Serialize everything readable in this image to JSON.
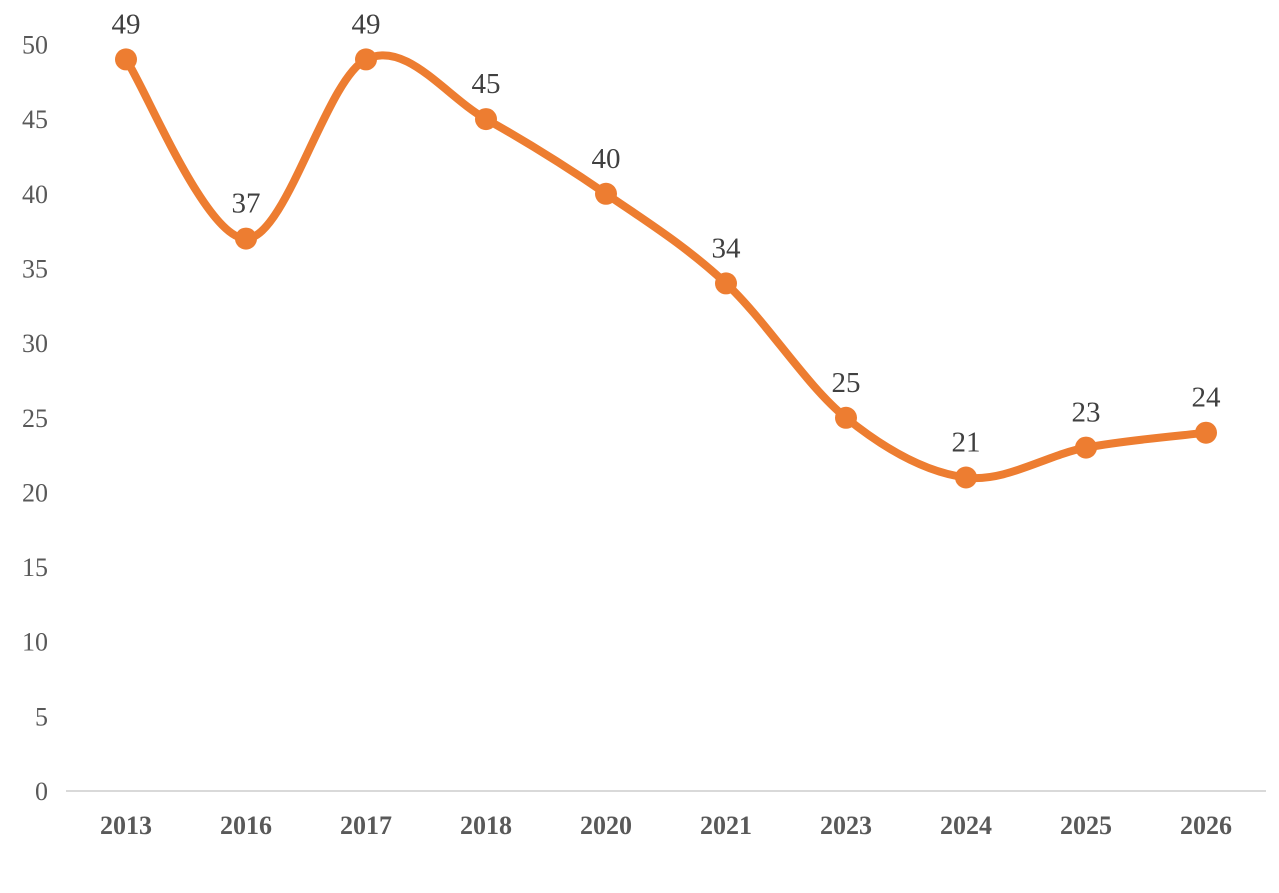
{
  "chart_data": {
    "type": "line",
    "title": "",
    "xlabel": "",
    "ylabel": "",
    "categories": [
      "2013",
      "2016",
      "2017",
      "2018",
      "2020",
      "2021",
      "2023",
      "2024",
      "2025",
      "2026"
    ],
    "values": [
      49,
      37,
      49,
      45,
      40,
      34,
      25,
      21,
      23,
      24
    ],
    "data_labels": [
      "49",
      "37",
      "49",
      "45",
      "40",
      "34",
      "25",
      "21",
      "23",
      "24"
    ],
    "ylim": [
      0,
      50
    ],
    "ytick_step": 5,
    "ytick_labels": [
      "0",
      "5",
      "10",
      "15",
      "20",
      "25",
      "30",
      "35",
      "40",
      "45",
      "50"
    ],
    "grid": "off",
    "legend": "none",
    "smoothed": true,
    "data_labels_position": "above",
    "line_color": "#ED7D31",
    "marker_color": "#ED7D31",
    "data_label_color": "#404040",
    "axis_label_color": "#595959",
    "axis_line_color": "#D9D9D9",
    "background_color": "#FFFFFF"
  }
}
